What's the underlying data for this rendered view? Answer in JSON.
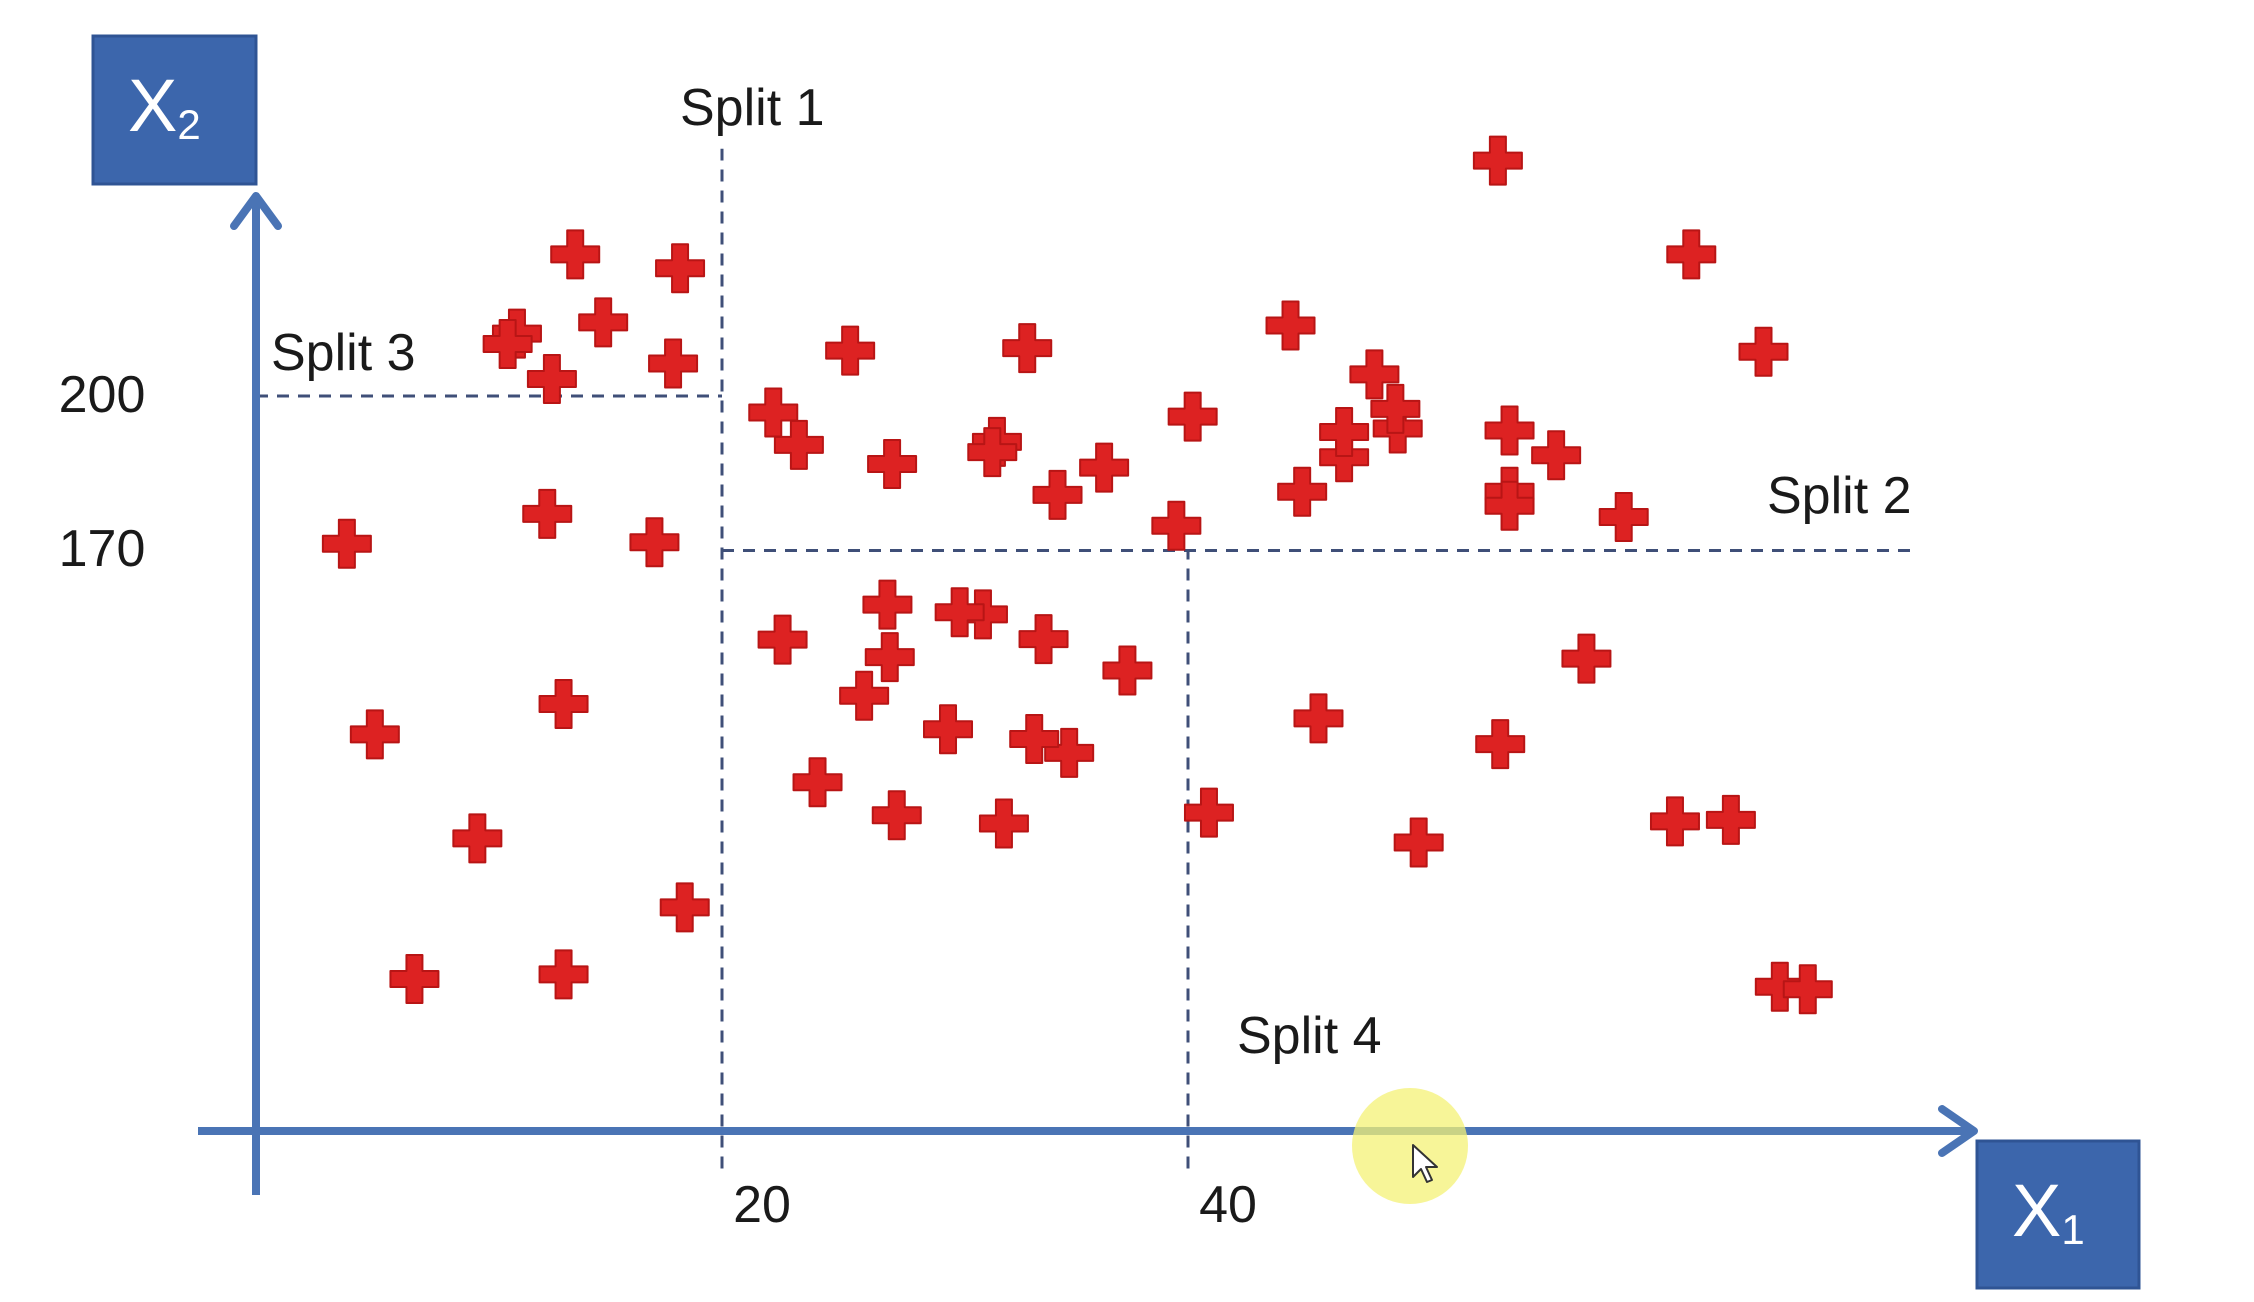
{
  "chart_data": {
    "type": "scatter",
    "title": "",
    "xlabel": "X",
    "xlabel_sub": "1",
    "ylabel": "X",
    "ylabel_sub": "2",
    "xlim": [
      0,
      72
    ],
    "ylim": [
      50,
      270
    ],
    "x_ticks": [
      {
        "value": 20,
        "label": "20"
      },
      {
        "value": 40,
        "label": "40"
      }
    ],
    "y_ticks": [
      {
        "value": 200,
        "label": "200"
      },
      {
        "value": 170,
        "label": "170"
      }
    ],
    "splits": [
      {
        "name": "Split 1",
        "orientation": "vertical",
        "value": 20,
        "from": 50,
        "to": 248
      },
      {
        "name": "Split 2",
        "orientation": "horizontal",
        "value": 170,
        "from": 20,
        "to": 71
      },
      {
        "name": "Split 3",
        "orientation": "horizontal",
        "value": 200,
        "from": 0,
        "to": 20
      },
      {
        "name": "Split 4",
        "orientation": "vertical",
        "value": 40,
        "from": 50,
        "to": 170
      }
    ],
    "marker": {
      "symbol": "plus",
      "color": "#dd2222"
    },
    "series": [
      {
        "name": "points",
        "x": [
          13.7,
          18.2,
          11.2,
          14.9,
          17.9,
          12.7,
          25.5,
          33.1,
          10.8,
          31.8,
          27.3,
          44.4,
          40.2,
          55.8,
          53.8,
          61.6,
          64.7,
          48.0,
          46.7,
          49.0,
          48.9,
          53.8,
          46.7,
          53.8,
          3.9,
          12.5,
          17.1,
          22.2,
          23.3,
          31.6,
          34.4,
          36.4,
          44.9,
          39.5,
          58.7,
          53.3,
          13.2,
          5.1,
          9.5,
          18.4,
          6.8,
          13.2,
          27.1,
          31.2,
          27.2,
          30.2,
          33.8,
          37.4,
          22.6,
          26.1,
          29.7,
          34.9,
          24.1,
          27.5,
          32.1,
          33.4,
          40.9,
          49.9,
          45.6,
          63.3,
          65.4,
          57.1,
          53.4,
          60.9,
          66.6
        ],
        "y": [
          227.5,
          224.8,
          212.1,
          214.3,
          206.3,
          203.3,
          208.8,
          209.3,
          210.1,
          191.1,
          186.8,
          213.7,
          196.0,
          188.5,
          181.4,
          227.5,
          208.6,
          204.2,
          188.1,
          193.7,
          197.5,
          178.7,
          193.0,
          193.3,
          171.3,
          177.1,
          171.6,
          196.8,
          190.5,
          189.1,
          180.8,
          186.1,
          181.4,
          174.8,
          176.5,
          245.7,
          140.2,
          134.3,
          114.1,
          100.7,
          86.8,
          87.7,
          159.5,
          157.6,
          149.3,
          158.0,
          152.8,
          146.7,
          152.7,
          141.8,
          135.3,
          130.7,
          125.0,
          118.6,
          117.0,
          133.4,
          119.1,
          113.3,
          137.4,
          117.7,
          85.3,
          149.0,
          132.4,
          117.4,
          84.8
        ]
      }
    ]
  }
}
